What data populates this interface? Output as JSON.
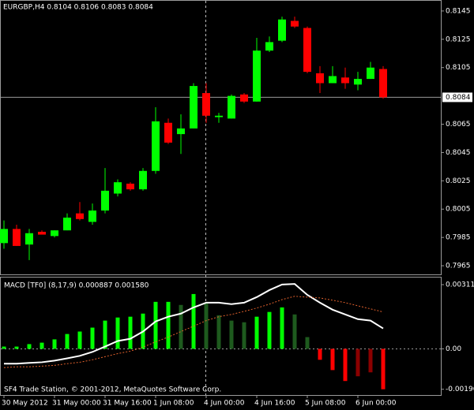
{
  "chart_data": [
    {
      "type": "candlestick",
      "title": "EURGBP,H4  0.8104 0.8106 0.8083 0.8084",
      "categories": [
        "30 May 2012",
        null,
        null,
        null,
        "31 May 00:00",
        null,
        null,
        null,
        "31 May 16:00",
        null,
        null,
        null,
        "1 Jun 08:00",
        null,
        null,
        null,
        "4 Jun 00:00",
        null,
        null,
        null,
        "4 Jun 16:00",
        null,
        null,
        null,
        "5 Jun 08:00",
        null,
        null,
        null,
        "6 Jun 00:00",
        null,
        null
      ],
      "open": [
        0.7981,
        0.7991,
        0.798,
        0.7989,
        0.7986,
        0.799,
        0.8002,
        0.7996,
        0.8004,
        0.8016,
        0.8023,
        0.8019,
        0.8032,
        0.8066,
        0.8058,
        0.8062,
        0.8087,
        0.807,
        0.8069,
        0.8086,
        0.8081,
        0.8117,
        0.8124,
        0.8138,
        0.8133,
        0.8101,
        0.8094,
        0.8098,
        0.8093,
        0.8097,
        0.8104
      ],
      "high": [
        0.7997,
        0.7994,
        0.7991,
        0.799,
        0.799,
        0.8002,
        0.801,
        0.8009,
        0.8034,
        0.8026,
        0.8024,
        0.8034,
        0.8077,
        0.8069,
        0.8072,
        0.8094,
        0.8094,
        0.8073,
        0.8086,
        0.8087,
        0.8126,
        0.8127,
        0.8141,
        0.8141,
        0.8134,
        0.8106,
        0.8106,
        0.8105,
        0.8102,
        0.8109,
        0.8106
      ],
      "low": [
        0.7977,
        0.7979,
        0.7969,
        0.7987,
        0.7985,
        0.799,
        0.7997,
        0.7994,
        0.8002,
        0.8014,
        0.8018,
        0.8018,
        0.803,
        0.8051,
        0.8044,
        0.8062,
        0.8066,
        0.8066,
        0.8069,
        0.808,
        0.8081,
        0.8116,
        0.8123,
        0.8133,
        0.8101,
        0.8087,
        0.8094,
        0.809,
        0.8089,
        0.8097,
        0.8083
      ],
      "close": [
        0.7991,
        0.7979,
        0.7988,
        0.7987,
        0.799,
        0.7999,
        0.7998,
        0.8004,
        0.8018,
        0.8024,
        0.8019,
        0.8032,
        0.8067,
        0.8052,
        0.8062,
        0.8092,
        0.8071,
        0.8071,
        0.8085,
        0.8081,
        0.8117,
        0.8123,
        0.8139,
        0.8134,
        0.8102,
        0.8094,
        0.8099,
        0.8094,
        0.8097,
        0.8105,
        0.8084
      ],
      "up_color": "#00ff00",
      "down_color": "#ff0000",
      "ylim": [
        0.79589,
        0.81522
      ],
      "yticks": [
        0.8145,
        0.8125,
        0.8105,
        0.8065,
        0.8045,
        0.8025,
        0.8005,
        0.7985,
        0.7965
      ],
      "price_line": {
        "value": 0.8084,
        "label": "0.8084"
      },
      "footer": "SF4 Trade Station, © 2001-2012, MetaQuotes Software Corp."
    },
    {
      "type": "macd",
      "title": "MACD [TF0] (8,17,9)  0.000887  0.001580",
      "histogram": {
        "values": [
          0.00011,
          0.00011,
          0.00023,
          0.0003,
          0.00046,
          0.00072,
          0.00084,
          0.00103,
          0.00137,
          0.00152,
          0.00156,
          0.00171,
          0.00228,
          0.00228,
          0.00213,
          0.00266,
          0.0022,
          0.00163,
          0.00137,
          0.00129,
          0.00156,
          0.00179,
          0.00201,
          0.00167,
          0.00057,
          -0.00053,
          -0.00103,
          -0.00156,
          -0.00133,
          -0.00114,
          -0.00196
        ],
        "colors": [
          "#00ff00",
          "#00ff00",
          "#00ff00",
          "#00ff00",
          "#00ff00",
          "#00ff00",
          "#00ff00",
          "#00ff00",
          "#00ff00",
          "#00ff00",
          "#00ff00",
          "#00ff00",
          "#00ff00",
          "#00ff00",
          "#1e5a1e",
          "#00ff00",
          "#1e5a1e",
          "#1e5a1e",
          "#1e5a1e",
          "#1e5a1e",
          "#00ff00",
          "#00ff00",
          "#00ff00",
          "#1e5a1e",
          "#1e5a1e",
          "#ff0000",
          "#ff0000",
          "#ff0000",
          "#8b0000",
          "#8b0000",
          "#ff0000"
        ]
      },
      "series": [
        {
          "color": "#ffffff",
          "dash": false,
          "values": [
            -0.00072,
            -0.00072,
            -0.00068,
            -0.00065,
            -0.00057,
            -0.00046,
            -0.00034,
            -0.00015,
            0.00011,
            0.00038,
            0.00049,
            0.00084,
            0.00133,
            0.00156,
            0.00171,
            0.00201,
            0.00224,
            0.00224,
            0.00217,
            0.00224,
            0.00251,
            0.00285,
            0.00312,
            0.00315,
            0.00262,
            0.00224,
            0.0019,
            0.00167,
            0.00144,
            0.00137,
            0.00099
          ]
        },
        {
          "color": "#e0602c",
          "dash": true,
          "values": [
            -0.00091,
            -0.00087,
            -0.00087,
            -0.00084,
            -0.0008,
            -0.00072,
            -0.00065,
            -0.00053,
            -0.00038,
            -0.00023,
            -0.00011,
            8e-05,
            0.00034,
            0.00057,
            0.00084,
            0.0011,
            0.00137,
            0.00156,
            0.00167,
            0.00182,
            0.00198,
            0.00217,
            0.00239,
            0.00255,
            0.00251,
            0.00247,
            0.00236,
            0.00224,
            0.00209,
            0.00194,
            0.00179
          ]
        }
      ],
      "ylim": [
        -0.00224,
        0.00346
      ],
      "yticks": [
        0.003115,
        {
          "value": 0,
          "label": "0.00"
        },
        -0.00196
      ]
    }
  ]
}
